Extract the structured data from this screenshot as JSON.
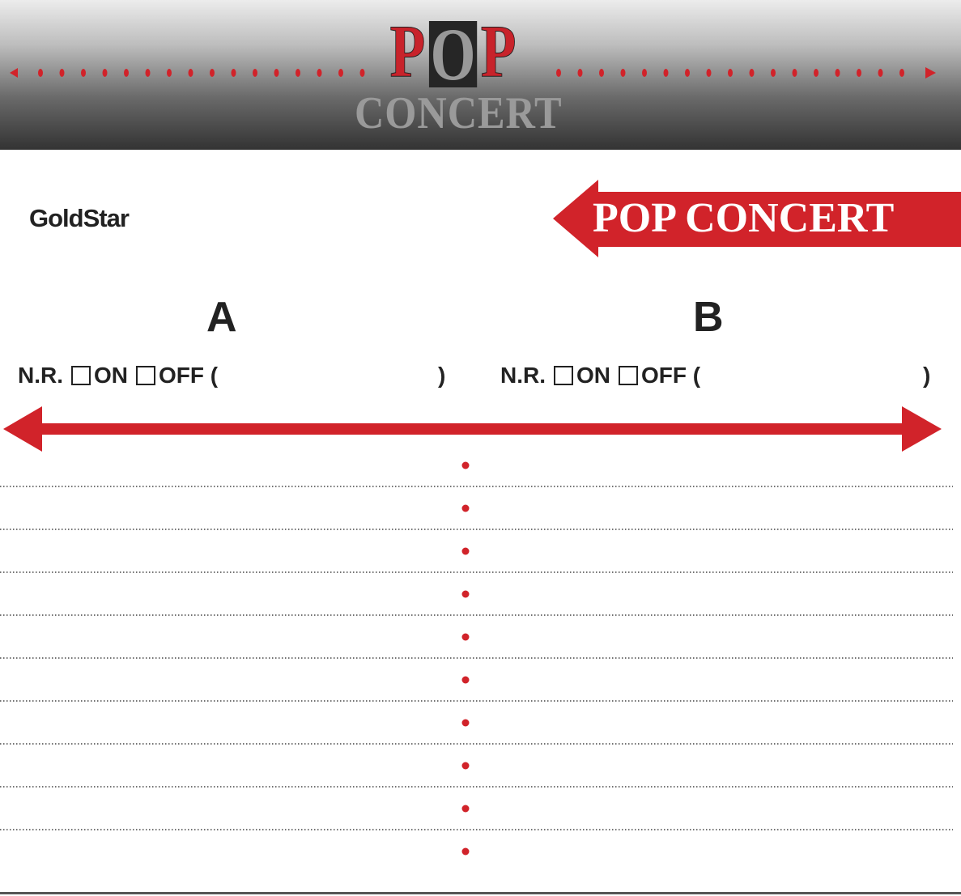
{
  "header": {
    "title_letters": [
      "P",
      "O",
      "P"
    ],
    "subtitle": "CONCERT"
  },
  "brand": "GoldStar",
  "banner": "POP CONCERT",
  "sides": [
    {
      "label": "A",
      "nr": "N.R.",
      "on": "ON",
      "off": "OFF (",
      "close": ")"
    },
    {
      "label": "B",
      "nr": "N.R.",
      "on": "ON",
      "off": "OFF (",
      "close": ")"
    }
  ],
  "colors": {
    "accent": "#d1232a",
    "dark": "#222222"
  },
  "track_lines": 9
}
